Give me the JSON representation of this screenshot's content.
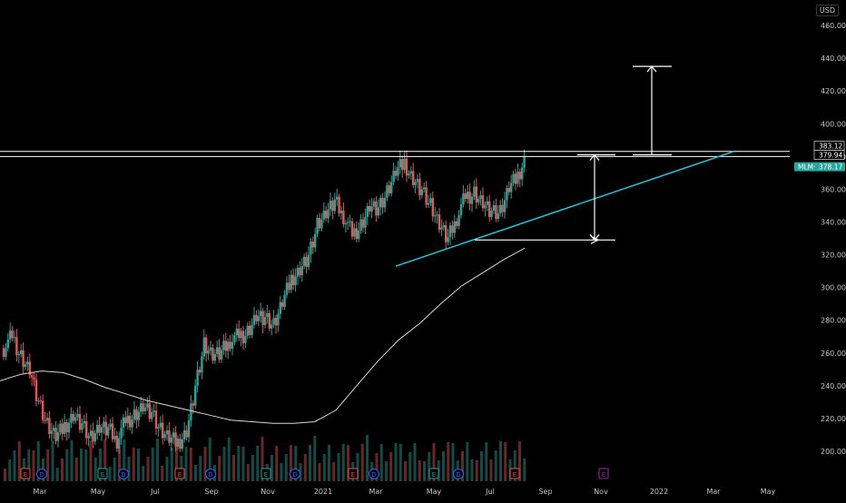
{
  "chart_data": {
    "type": "candlestick",
    "symbol": "MLM",
    "currency": "USD",
    "last_price": "378.17",
    "price_labels": [
      "383.12",
      "379.94"
    ],
    "ylim": [
      190,
      470
    ],
    "y_ticks": [
      200,
      220,
      240,
      260,
      280,
      300,
      320,
      340,
      360,
      380,
      400,
      420,
      440,
      460
    ],
    "y_tick_labels": [
      "200.00",
      "220.00",
      "240.00",
      "260.00",
      "280.00",
      "300.00",
      "320.00",
      "340.00",
      "360.00",
      "380.00",
      "400.00",
      "420.00",
      "440.00",
      "460.00"
    ],
    "x_ticks": [
      "Mar",
      "May",
      "Jul",
      "Sep",
      "Nov",
      "2021",
      "Mar",
      "May",
      "Jul",
      "Sep",
      "Nov",
      "2022",
      "Mar",
      "May"
    ],
    "close_series": [
      263,
      270,
      258,
      250,
      230,
      215,
      208,
      215,
      223,
      217,
      208,
      214,
      213,
      207,
      218,
      222,
      228,
      223,
      212,
      207,
      205,
      213,
      240,
      265,
      258,
      260,
      268,
      270,
      273,
      283,
      281,
      276,
      290,
      305,
      312,
      320,
      338,
      345,
      352,
      344,
      332,
      338,
      350,
      348,
      357,
      370,
      376,
      367,
      360,
      350,
      338,
      329,
      343,
      355,
      358,
      352,
      346,
      345,
      360,
      368,
      382
    ],
    "moving_average": [
      243,
      247,
      249,
      248,
      244,
      239,
      235,
      231,
      228,
      225,
      222,
      219,
      218,
      217,
      217,
      218,
      225,
      240,
      255,
      268,
      278,
      290,
      301,
      309,
      317,
      324
    ],
    "resistance_levels": [
      383.12,
      379.94
    ],
    "trendline": [
      [
        0,
        313
      ],
      [
        1,
        383
      ]
    ],
    "measured_move": {
      "from": 329,
      "to": 381,
      "projection_from": 381,
      "projection_to": 435
    },
    "event_markers": [
      "E",
      "D",
      "E",
      "D",
      "E",
      "D",
      "E",
      "D",
      "E",
      "D",
      "E",
      "D",
      "E",
      "E"
    ],
    "colors": {
      "up": "#26a69a",
      "down": "#ef5350",
      "trendline": "#26c6da",
      "lines": "#ffffff",
      "ma": "#d8d8d8",
      "background": "#000000",
      "earnings": "#ef5350",
      "dividend": "#2962ff",
      "future_earnings": "#9c27b0"
    }
  }
}
